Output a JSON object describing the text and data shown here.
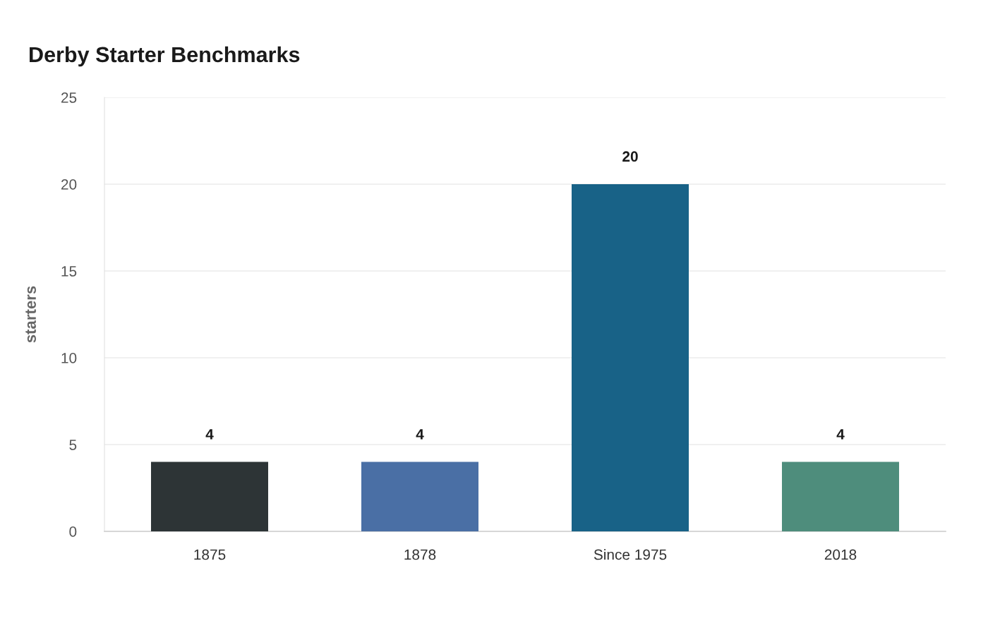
{
  "chart_data": {
    "type": "bar",
    "title": "Derby Starter Benchmarks",
    "ylabel": "starters",
    "categories": [
      "1875",
      "1878",
      "Since 1975",
      "2018"
    ],
    "values": [
      4,
      4,
      20,
      4
    ],
    "colors": [
      "#2d3436",
      "#4a6fa5",
      "#186287",
      "#4e8d7c"
    ],
    "ylim": [
      0,
      25
    ],
    "yticks": [
      0,
      5,
      10,
      15,
      20,
      25
    ],
    "grid": "y",
    "data_labels": true
  }
}
